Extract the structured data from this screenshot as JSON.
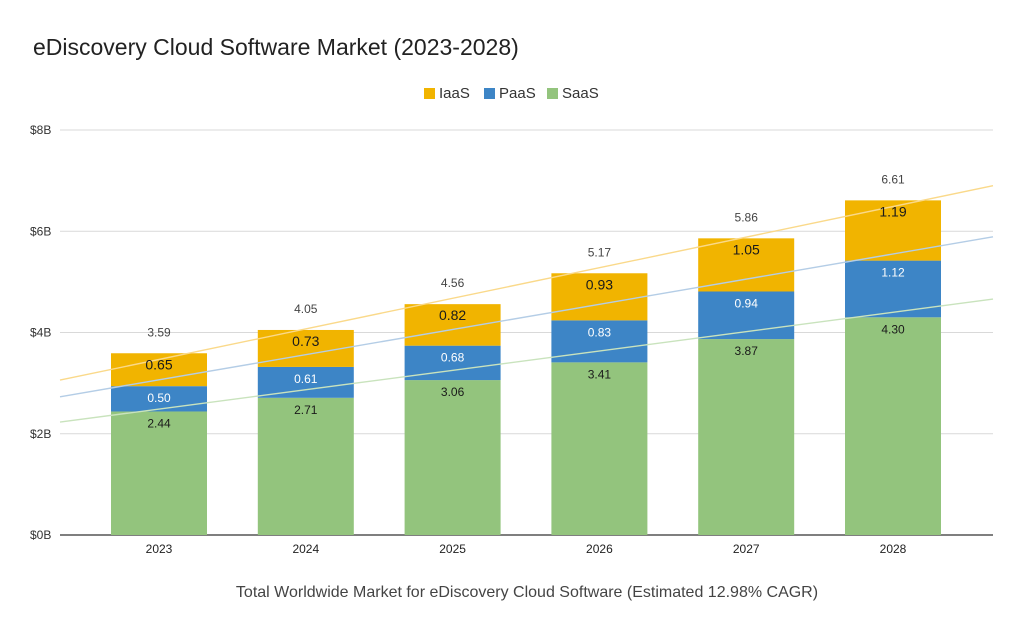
{
  "chart_data": {
    "type": "bar",
    "stacked": true,
    "title": "eDiscovery Cloud Software Market (2023-2028)",
    "xlabel": "Total Worldwide Market for eDiscovery Cloud Software (Estimated 12.98% CAGR)",
    "ylabel": "",
    "ylim": [
      0,
      8
    ],
    "y_ticks": [
      {
        "value": 0,
        "label": "$0B"
      },
      {
        "value": 2,
        "label": "$2B"
      },
      {
        "value": 4,
        "label": "$4B"
      },
      {
        "value": 6,
        "label": "$6B"
      },
      {
        "value": 8,
        "label": "$8B"
      }
    ],
    "grid": true,
    "legend_position": "top-center",
    "categories": [
      "2023",
      "2024",
      "2025",
      "2026",
      "2027",
      "2028"
    ],
    "series": [
      {
        "name": "SaaS",
        "color": "#93c47d",
        "label_color": "#1a1a1a",
        "values": [
          2.44,
          2.71,
          3.06,
          3.41,
          3.87,
          4.3
        ]
      },
      {
        "name": "PaaS",
        "color": "#3d85c6",
        "label_color": "#ffffff",
        "values": [
          0.5,
          0.61,
          0.68,
          0.83,
          0.94,
          1.12
        ]
      },
      {
        "name": "IaaS",
        "color": "#f1b400",
        "label_color": "#1a1a1a",
        "values": [
          0.65,
          0.73,
          0.82,
          0.93,
          1.05,
          1.19
        ]
      }
    ],
    "legend_order": [
      "IaaS",
      "PaaS",
      "SaaS"
    ],
    "totals": [
      3.59,
      4.05,
      4.56,
      5.17,
      5.86,
      6.61
    ],
    "trendlines": [
      {
        "series": "IaaS",
        "color": "#fad98a",
        "start": 3.06,
        "end": 6.9
      },
      {
        "series": "PaaS",
        "color": "#b4cde6",
        "start": 2.73,
        "end": 5.89
      },
      {
        "series": "SaaS",
        "color": "#c9e3bd",
        "start": 2.23,
        "end": 4.66
      }
    ]
  }
}
